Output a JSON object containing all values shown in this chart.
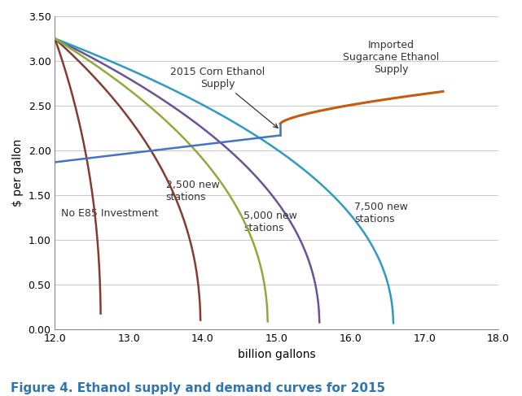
{
  "title": "Figure 4. Ethanol supply and demand curves for 2015",
  "xlabel": "billion gallons",
  "ylabel": "$ per gallon",
  "xlim": [
    12.0,
    18.0
  ],
  "ylim": [
    0.0,
    3.5
  ],
  "xticks": [
    12.0,
    13.0,
    14.0,
    15.0,
    16.0,
    17.0,
    18.0
  ],
  "yticks": [
    0.0,
    0.5,
    1.0,
    1.5,
    2.0,
    2.5,
    3.0,
    3.5
  ],
  "background_color": "#ffffff",
  "grid_color": "#c8c8c8",
  "demand_color": "#4472c4",
  "sugarcane_color": "#c55a11",
  "no_e85_color": "#843c30",
  "stations_2500_color": "#843c30",
  "stations_5000_color": "#8faa39",
  "stations_7500_color": "#2e9ac4",
  "purple_color": "#6a5199",
  "annotation_fontsize": 9,
  "axis_fontsize": 10,
  "title_fontsize": 11
}
